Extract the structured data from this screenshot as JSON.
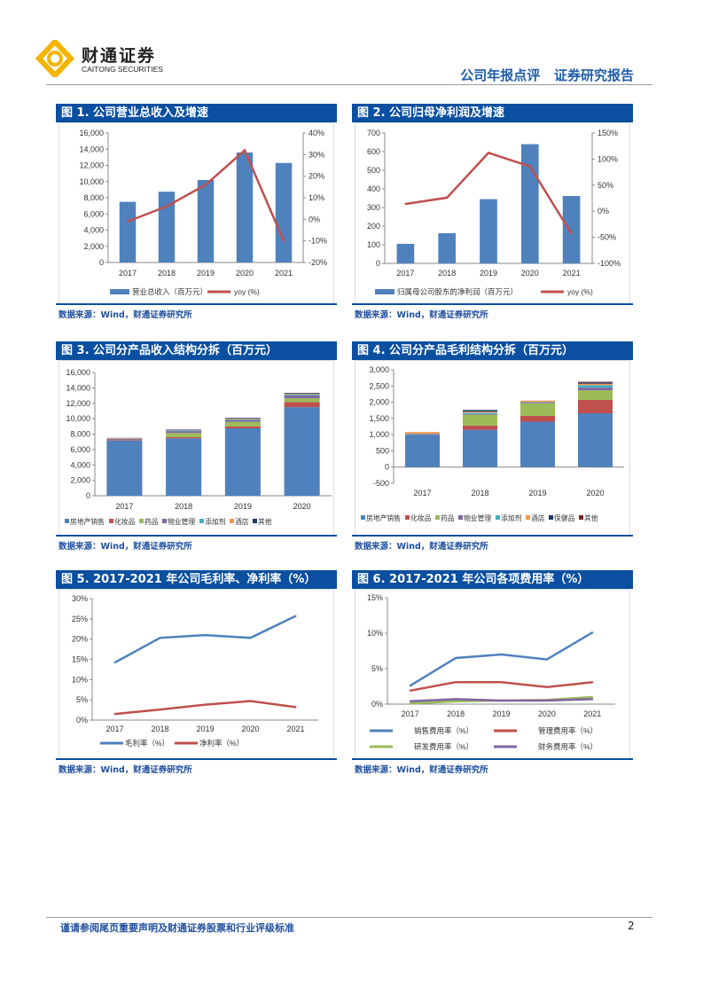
{
  "header": {
    "brand_cn": "财通证券",
    "brand_en": "CAITONG SECURITIES",
    "report_type": "公司年报点评",
    "report_kind": "证券研究报告"
  },
  "source_note": "数据来源：Wind，财通证券研究所",
  "footer": {
    "disclaimer": "谨请参阅尾页重要声明及财通证券股票和行业评级标准",
    "page": "2"
  },
  "colors": {
    "blue": "#4f81bd",
    "red": "#c0504d",
    "green": "#9bbb59",
    "purple": "#8064a2",
    "cyan": "#4bacc6",
    "orange": "#f79646",
    "navy": "#1f3864",
    "maroon": "#7b2020",
    "title_bar": "#0a4fa0"
  },
  "chart_data": [
    {
      "title": "图 1. 公司营业总收入及增速",
      "type": "bar+line",
      "categories": [
        "2017",
        "2018",
        "2019",
        "2020",
        "2021"
      ],
      "bar_series": {
        "name": "营业总收入（百万元）",
        "values": [
          7500,
          8750,
          10200,
          13600,
          12300
        ]
      },
      "line_series": {
        "name": "yoy (%)",
        "values": [
          -1,
          6,
          16,
          32,
          -10
        ]
      },
      "ylim": [
        0,
        16000
      ],
      "yticks": [
        "0",
        "2,000",
        "4,000",
        "6,000",
        "8,000",
        "10,000",
        "12,000",
        "14,000",
        "16,000"
      ],
      "y2lim": [
        -20,
        40
      ],
      "y2ticks": [
        "-20%",
        "-10%",
        "0%",
        "10%",
        "20%",
        "30%",
        "40%"
      ]
    },
    {
      "title": "图 2. 公司归母净利润及增速",
      "type": "bar+line",
      "categories": [
        "2017",
        "2018",
        "2019",
        "2020",
        "2021"
      ],
      "bar_series": {
        "name": "归属母公司股东的净利润（百万元）",
        "values": [
          105,
          162,
          345,
          640,
          362
        ]
      },
      "line_series": {
        "name": "yoy (%)",
        "values": [
          14,
          26,
          112,
          86,
          -43
        ]
      },
      "ylim": [
        0,
        700
      ],
      "yticks": [
        "0",
        "100",
        "200",
        "300",
        "400",
        "500",
        "600",
        "700"
      ],
      "y2lim": [
        -100,
        150
      ],
      "y2ticks": [
        "-100%",
        "-50%",
        "0%",
        "50%",
        "100%",
        "150%"
      ]
    },
    {
      "title": "图 3. 公司分产品收入结构分拆（百万元）",
      "type": "stacked-bar",
      "categories": [
        "2017",
        "2018",
        "2019",
        "2020"
      ],
      "series": [
        {
          "name": "房地产销售",
          "values": [
            7150,
            7450,
            8750,
            11500
          ]
        },
        {
          "name": "化妆品",
          "values": [
            60,
            150,
            250,
            650
          ]
        },
        {
          "name": "药品",
          "values": [
            0,
            550,
            600,
            500
          ]
        },
        {
          "name": "物业管理",
          "values": [
            150,
            200,
            200,
            350
          ]
        },
        {
          "name": "添加剂",
          "values": [
            50,
            100,
            100,
            150
          ]
        },
        {
          "name": "酒店",
          "values": [
            80,
            50,
            100,
            100
          ]
        },
        {
          "name": "其他",
          "values": [
            20,
            80,
            100,
            100
          ]
        }
      ],
      "ylim": [
        0,
        16000
      ],
      "yticks": [
        "0",
        "2,000",
        "4,000",
        "6,000",
        "8,000",
        "10,000",
        "12,000",
        "14,000",
        "16,000"
      ]
    },
    {
      "title": "图 4. 公司分产品毛利结构分拆（百万元）",
      "type": "stacked-bar",
      "categories": [
        "2017",
        "2018",
        "2019",
        "2020"
      ],
      "series": [
        {
          "name": "房地产销售",
          "values": [
            1000,
            1150,
            1400,
            1660
          ]
        },
        {
          "name": "化妆品",
          "values": [
            10,
            130,
            180,
            410
          ]
        },
        {
          "name": "药品",
          "values": [
            0,
            340,
            390,
            300
          ]
        },
        {
          "name": "物业管理",
          "values": [
            10,
            20,
            30,
            80
          ]
        },
        {
          "name": "添加剂",
          "values": [
            10,
            40,
            10,
            80
          ]
        },
        {
          "name": "酒店",
          "values": [
            50,
            30,
            40,
            40
          ]
        },
        {
          "name": "保健品",
          "values": [
            0,
            50,
            0,
            40
          ]
        },
        {
          "name": "其他",
          "values": [
            0,
            0,
            0,
            20
          ]
        }
      ],
      "ylim": [
        -500,
        3000
      ],
      "yticks": [
        "-500",
        "0",
        "500",
        "1,000",
        "1,500",
        "2,000",
        "2,500",
        "3,000"
      ]
    },
    {
      "title": "图 5. 2017-2021 年公司毛利率、净利率（%）",
      "type": "line",
      "categories": [
        "2017",
        "2018",
        "2019",
        "2020",
        "2021"
      ],
      "series": [
        {
          "name": "毛利率（%）",
          "values": [
            14.2,
            20.3,
            21.0,
            20.3,
            25.7
          ]
        },
        {
          "name": "净利率（%）",
          "values": [
            1.5,
            2.6,
            3.8,
            4.7,
            3.2
          ]
        }
      ],
      "ylim": [
        0,
        30
      ],
      "yticks": [
        "0%",
        "5%",
        "10%",
        "15%",
        "20%",
        "25%",
        "30%"
      ]
    },
    {
      "title": "图 6. 2017-2021 年公司各项费用率（%）",
      "type": "line",
      "categories": [
        "2017",
        "2018",
        "2019",
        "2020",
        "2021"
      ],
      "series": [
        {
          "name": "销售费用率（%）",
          "values": [
            2.6,
            6.5,
            7.0,
            6.3,
            10.1
          ]
        },
        {
          "name": "管理费用率（%）",
          "values": [
            1.9,
            3.1,
            3.1,
            2.4,
            3.1
          ]
        },
        {
          "name": "研发费用率（%）",
          "values": [
            0.1,
            0.4,
            0.5,
            0.6,
            1.0
          ]
        },
        {
          "name": "财务费用率（%）",
          "values": [
            0.4,
            0.7,
            0.5,
            0.5,
            0.7
          ]
        }
      ],
      "ylim": [
        0,
        15
      ],
      "yticks": [
        "0%",
        "5%",
        "10%",
        "15%"
      ]
    }
  ]
}
